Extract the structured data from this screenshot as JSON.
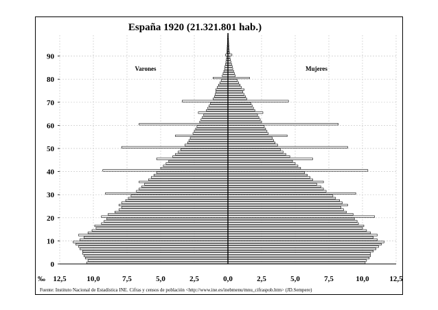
{
  "chart_data": {
    "type": "bar",
    "orientation": "horizontal-population-pyramid",
    "title": "España 1920 (21.321.801 hab.)",
    "unit_label": "‰",
    "left_label": "Varones",
    "right_label": "Mujeres",
    "source_note": "Fuente: Instituto Nacional de Estadística INE. Cifras y censos de población <http://www.ine.es/inebmenu/mnu_cifraspob.htm> (JD.Sempere)",
    "x_tick_labels": [
      "12,5",
      "10,0",
      "7,5",
      "5,0",
      "2,5",
      "0,0",
      "2,5",
      "5,0",
      "7,5",
      "10,0",
      "12,5"
    ],
    "y_tick_labels": [
      "0",
      "10",
      "20",
      "30",
      "40",
      "50",
      "60",
      "70",
      "80",
      "90"
    ],
    "y_tick_values": [
      0,
      10,
      20,
      30,
      40,
      50,
      60,
      70,
      80,
      90
    ],
    "xlim": [
      -12.5,
      12.5
    ],
    "ylim": [
      0,
      99
    ],
    "grid": true,
    "ages": [
      0,
      1,
      2,
      3,
      4,
      5,
      6,
      7,
      8,
      9,
      10,
      11,
      12,
      13,
      14,
      15,
      16,
      17,
      18,
      19,
      20,
      21,
      22,
      23,
      24,
      25,
      26,
      27,
      28,
      29,
      30,
      31,
      32,
      33,
      34,
      35,
      36,
      37,
      38,
      39,
      40,
      41,
      42,
      43,
      44,
      45,
      46,
      47,
      48,
      49,
      50,
      51,
      52,
      53,
      54,
      55,
      56,
      57,
      58,
      59,
      60,
      61,
      62,
      63,
      64,
      65,
      66,
      67,
      68,
      69,
      70,
      71,
      72,
      73,
      74,
      75,
      76,
      77,
      78,
      79,
      80,
      81,
      82,
      83,
      84,
      85,
      86,
      87,
      88,
      89,
      90,
      91,
      92,
      93,
      94,
      95,
      96,
      97,
      98,
      99
    ],
    "series": [
      {
        "name": "Varones",
        "values": [
          10.5,
          10.4,
          10.6,
          10.7,
          10.8,
          10.8,
          11.0,
          11.1,
          11.3,
          11.5,
          11.0,
          10.7,
          11.1,
          10.4,
          10.1,
          9.8,
          9.9,
          9.4,
          9.2,
          9.0,
          9.4,
          8.9,
          8.4,
          8.1,
          7.9,
          8.1,
          7.9,
          7.6,
          7.4,
          7.2,
          9.1,
          6.8,
          6.6,
          6.4,
          6.2,
          6.6,
          5.9,
          5.7,
          5.5,
          5.3,
          9.3,
          5.0,
          4.8,
          4.6,
          4.4,
          5.3,
          4.1,
          3.9,
          3.7,
          3.5,
          7.9,
          3.2,
          3.0,
          2.9,
          2.8,
          3.9,
          2.6,
          2.5,
          2.4,
          2.3,
          6.6,
          2.1,
          2.0,
          1.9,
          1.8,
          2.2,
          1.6,
          1.5,
          1.4,
          1.3,
          3.4,
          1.1,
          1.0,
          0.95,
          0.9,
          0.9,
          0.8,
          0.7,
          0.6,
          0.5,
          1.1,
          0.42,
          0.36,
          0.3,
          0.25,
          0.22,
          0.18,
          0.15,
          0.12,
          0.1,
          0.18,
          0.08,
          0.07,
          0.06,
          0.05,
          0.04,
          0.03,
          0.03,
          0.02,
          0.02
        ]
      },
      {
        "name": "Mujeres",
        "values": [
          10.2,
          10.3,
          10.5,
          10.6,
          10.6,
          10.8,
          11.0,
          11.2,
          11.4,
          11.6,
          11.1,
          10.8,
          11.1,
          10.6,
          10.3,
          10.0,
          10.1,
          9.7,
          9.6,
          9.4,
          10.9,
          9.3,
          8.8,
          8.6,
          8.4,
          8.9,
          8.5,
          8.3,
          8.0,
          7.8,
          9.5,
          7.3,
          7.1,
          6.9,
          6.6,
          7.1,
          6.3,
          6.1,
          5.9,
          5.7,
          10.4,
          5.4,
          5.2,
          5.0,
          4.8,
          6.3,
          4.6,
          4.3,
          4.1,
          3.9,
          8.9,
          3.7,
          3.5,
          3.4,
          3.3,
          4.4,
          3.0,
          2.9,
          2.8,
          2.7,
          8.2,
          2.5,
          2.4,
          2.3,
          2.2,
          2.6,
          2.0,
          1.9,
          1.8,
          1.7,
          4.5,
          1.4,
          1.3,
          1.2,
          1.1,
          1.2,
          1.0,
          0.9,
          0.8,
          0.7,
          1.6,
          0.55,
          0.48,
          0.42,
          0.36,
          0.32,
          0.27,
          0.22,
          0.18,
          0.15,
          0.3,
          0.12,
          0.1,
          0.08,
          0.07,
          0.06,
          0.05,
          0.04,
          0.03,
          0.03
        ]
      }
    ]
  }
}
